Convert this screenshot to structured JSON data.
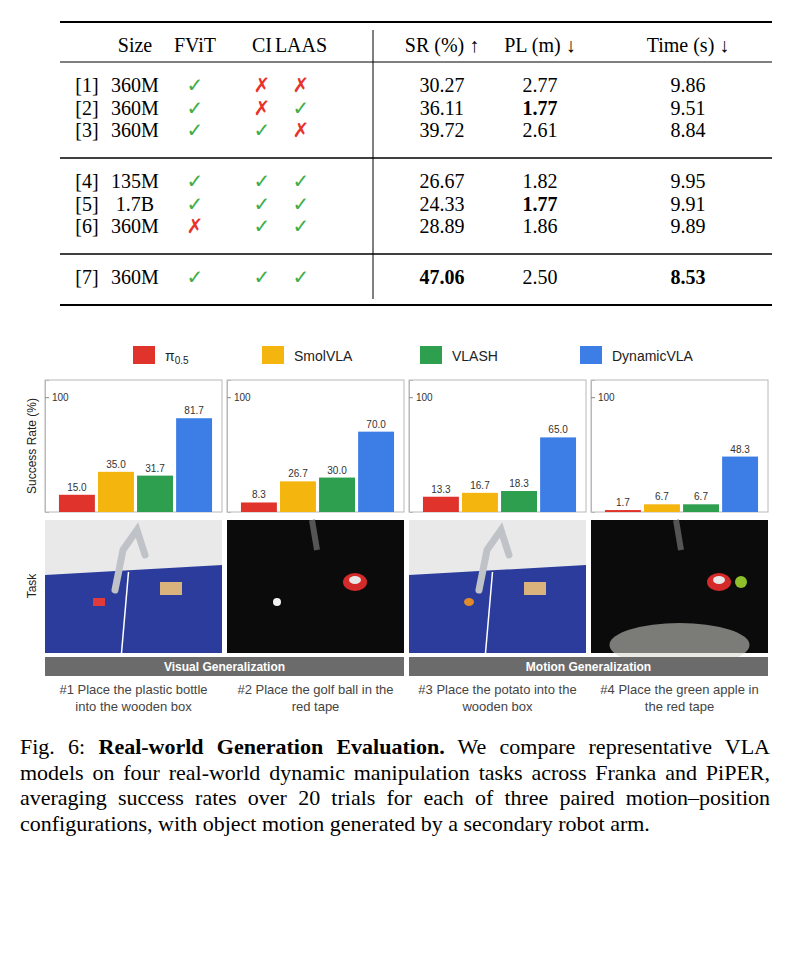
{
  "table": {
    "header": [
      "Size",
      "FViT",
      "CI",
      "LAAS",
      "SR (%) ↑",
      "PL (m) ↓",
      "Time (s) ↓"
    ],
    "row_groups": [
      [
        [
          "[1]",
          "360M",
          {
            "text": "✓",
            "color": "#3dae49"
          },
          {
            "text": "✗",
            "color": "#e8322b"
          },
          {
            "text": "✗",
            "color": "#e8322b"
          },
          "30.27",
          "2.77",
          "9.86"
        ],
        [
          "[2]",
          "360M",
          {
            "text": "✓",
            "color": "#3dae49"
          },
          {
            "text": "✗",
            "color": "#e8322b"
          },
          {
            "text": "✓",
            "color": "#3dae49"
          },
          "36.11",
          {
            "text": "1.77",
            "bold": true
          },
          "9.51"
        ],
        [
          "[3]",
          "360M",
          {
            "text": "✓",
            "color": "#3dae49"
          },
          {
            "text": "✓",
            "color": "#3dae49"
          },
          {
            "text": "✗",
            "color": "#e8322b"
          },
          "39.72",
          "2.61",
          "8.84"
        ]
      ],
      [
        [
          "[4]",
          "135M",
          {
            "text": "✓",
            "color": "#3dae49"
          },
          {
            "text": "✓",
            "color": "#3dae49"
          },
          {
            "text": "✓",
            "color": "#3dae49"
          },
          "26.67",
          "1.82",
          "9.95"
        ],
        [
          "[5]",
          "1.7B",
          {
            "text": "✓",
            "color": "#3dae49"
          },
          {
            "text": "✓",
            "color": "#3dae49"
          },
          {
            "text": "✓",
            "color": "#3dae49"
          },
          "24.33",
          {
            "text": "1.77",
            "bold": true
          },
          "9.91"
        ],
        [
          "[6]",
          "360M",
          {
            "text": "✗",
            "color": "#e8322b"
          },
          {
            "text": "✓",
            "color": "#3dae49"
          },
          {
            "text": "✓",
            "color": "#3dae49"
          },
          "28.89",
          "1.86",
          "9.89"
        ]
      ],
      [
        [
          "[7]",
          "360M",
          {
            "text": "✓",
            "color": "#3dae49"
          },
          {
            "text": "✓",
            "color": "#3dae49"
          },
          {
            "text": "✓",
            "color": "#3dae49"
          },
          {
            "text": "47.06",
            "bold": true
          },
          "2.50",
          {
            "text": "8.53",
            "bold": true
          }
        ]
      ]
    ]
  },
  "chart_data": {
    "type": "bar",
    "ylabel": "Success Rate (%)",
    "categories": [
      "#1 Place the plastic bottle into the wooden box",
      "#2 Place the golf ball in the red tape",
      "#3 Place the potato into the wooden box",
      "#4 Place the green apple in the red tape"
    ],
    "series": [
      {
        "name": "π0.5",
        "color": "#e0332b",
        "values": [
          15.0,
          8.3,
          13.3,
          1.7
        ],
        "value_labels": [
          "15.0",
          "8.3",
          "13.3",
          "1.7"
        ]
      },
      {
        "name": "SmolVLA",
        "color": "#f5b50f",
        "values": [
          35.0,
          26.7,
          16.7,
          6.7
        ],
        "value_labels": [
          "35.0",
          "26.7",
          "16.7",
          "6.7"
        ]
      },
      {
        "name": "VLASH",
        "color": "#2e9e4f",
        "values": [
          31.7,
          30.0,
          18.3,
          6.7
        ],
        "value_labels": [
          "31.7",
          "30.0",
          "18.3",
          "6.7"
        ]
      },
      {
        "name": "DynamicVLA",
        "color": "#3d7ee6",
        "values": [
          81.7,
          70.0,
          65.0,
          48.3
        ],
        "value_labels": [
          "81.7",
          "70.0",
          "65.0",
          "48.3"
        ]
      }
    ],
    "ylim": [
      0,
      115
    ],
    "yticks": [
      100
    ],
    "data_labels": true,
    "legend": "top",
    "tick_labels": "y"
  },
  "row_label": "Task",
  "groups": [
    "Visual Generalization",
    "Motion Generalization"
  ],
  "caption": {
    "label": "Fig. 6:",
    "title": "Real-world Generation Evaluation.",
    "text": "We compare representative VLA models on four real-world dynamic manipulation tasks across Franka and PiPER, averaging success rates over 20 trials for each of three paired motion–position configurations, with object motion generated by a secondary robot arm."
  }
}
